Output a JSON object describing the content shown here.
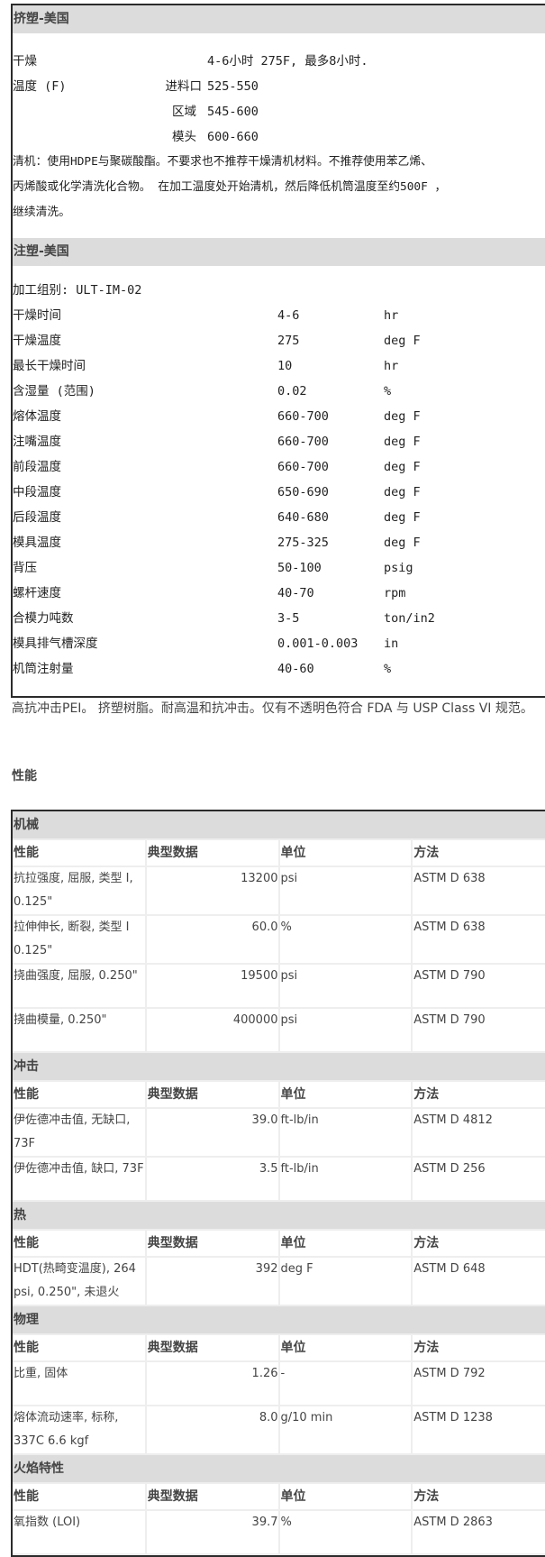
{
  "extrusion": {
    "title": "挤塑-美国",
    "drying_label": "干燥",
    "drying_value": "4-6小时 275F, 最多8小时.",
    "temp_label": "温度 (F)",
    "zones": [
      {
        "label": "进料口",
        "value": "525-550"
      },
      {
        "label": "区域",
        "value": "545-600"
      },
      {
        "label": "模头",
        "value": "600-660"
      }
    ],
    "purge_lines": [
      "清机：使用HDPE与聚碳酸酯。不要求也不推荐干燥清机材料。不推荐使用苯乙烯、",
      "丙烯酸或化学清洗化合物。 在加工温度处开始清机，然后降低机筒温度至约500F ，",
      "继续清洗。"
    ]
  },
  "injection": {
    "title": "注塑-美国",
    "group": "加工组别:  ULT-IM-02",
    "rows": [
      {
        "name": "干燥时间",
        "value": "4-6",
        "unit": "hr"
      },
      {
        "name": "干燥温度",
        "value": "275",
        "unit": "deg F"
      },
      {
        "name": "最长干燥时间",
        "value": "10",
        "unit": "hr"
      },
      {
        "name": "含湿量 (范围)",
        "value": "0.02",
        "unit": "%"
      },
      {
        "name": "熔体温度",
        "value": "660-700",
        "unit": "deg F"
      },
      {
        "name": "注嘴温度",
        "value": "660-700",
        "unit": "deg F"
      },
      {
        "name": "前段温度",
        "value": "660-700",
        "unit": "deg F"
      },
      {
        "name": "中段温度",
        "value": "650-690",
        "unit": "deg F"
      },
      {
        "name": "后段温度",
        "value": "640-680",
        "unit": "deg F"
      },
      {
        "name": "模具温度",
        "value": "275-325",
        "unit": "deg F"
      },
      {
        "name": "背压",
        "value": "50-100",
        "unit": "psig"
      },
      {
        "name": "螺杆速度",
        "value": "40-70",
        "unit": "rpm"
      },
      {
        "name": "合模力吨数",
        "value": "3-5",
        "unit": "ton/in2"
      },
      {
        "name": "模具排气槽深度",
        "value": "0.001-0.003",
        "unit": "in"
      },
      {
        "name": "机筒注射量",
        "value": "40-60",
        "unit": "%"
      }
    ]
  },
  "description": "高抗冲击PEI。 挤塑树脂。耐高温和抗冲击。仅有不透明色符合 FDA 与 USP Class VI 规范。",
  "properties_title": "性能",
  "columns": {
    "property": "性能",
    "typical": "典型数据",
    "unit": "单位",
    "method": "方法"
  },
  "sections": [
    {
      "title": "机械",
      "rows": [
        {
          "name": "抗拉强度, 屈服, 类型 I, 0.125\"",
          "value": "13200",
          "unit": "psi",
          "method": "ASTM D 638"
        },
        {
          "name": "拉伸伸长, 断裂, 类型 I 0.125\"",
          "value": "60.0",
          "unit": "%",
          "method": "ASTM D 638"
        },
        {
          "name": "挠曲强度, 屈服, 0.250\"",
          "value": "19500",
          "unit": "psi",
          "method": "ASTM D 790"
        },
        {
          "name": "挠曲模量, 0.250\"",
          "value": "400000",
          "unit": "psi",
          "method": "ASTM D 790"
        }
      ]
    },
    {
      "title": "冲击",
      "rows": [
        {
          "name": "伊佐德冲击值, 无缺口, 73F",
          "value": "39.0",
          "unit": "ft-lb/in",
          "method": "ASTM D 4812"
        },
        {
          "name": "伊佐德冲击值, 缺口, 73F",
          "value": "3.5",
          "unit": "ft-lb/in",
          "method": "ASTM D 256"
        }
      ]
    },
    {
      "title": "热",
      "rows": [
        {
          "name": "HDT(热畸变温度), 264 psi, 0.250\", 未退火",
          "value": "392",
          "unit": "deg F",
          "method": "ASTM D 648"
        }
      ]
    },
    {
      "title": "物理",
      "rows": [
        {
          "name": "比重, 固体",
          "value": "1.26",
          "unit": "-",
          "method": "ASTM D 792"
        },
        {
          "name": "熔体流动速率, 标称, 337C 6.6 kgf",
          "value": "8.0",
          "unit": "g/10 min",
          "method": "ASTM D 1238"
        }
      ]
    },
    {
      "title": "火焰特性",
      "rows": [
        {
          "name": "氧指数 (LOI)",
          "value": "39.7",
          "unit": "%",
          "method": "ASTM D 2863"
        }
      ]
    }
  ]
}
